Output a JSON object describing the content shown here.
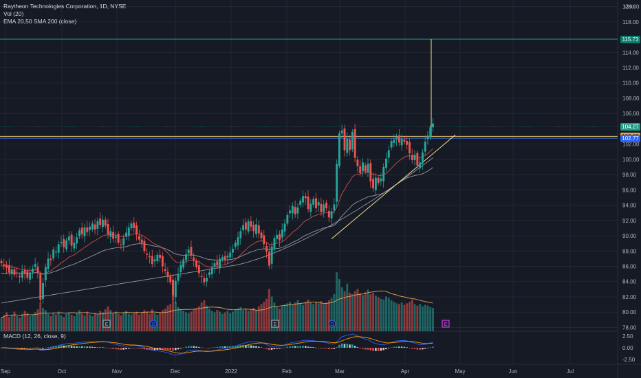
{
  "header": {
    "symbol_line": "Raytheon Technologies Corporation, 1D, NYSE",
    "vol_line": "Vol (20)",
    "ma_line": "EMA 20,50 SMA 200 (close)",
    "currency": "USD"
  },
  "macd_label": "MACD (12, 26, close, 9)",
  "price_tags": [
    {
      "label": "115.73",
      "value": 115.73,
      "bg": "#0b7d6b",
      "fg": "#ffffff"
    },
    {
      "label": "104.27",
      "value": 104.27,
      "bg": "#1e9e88",
      "fg": "#ffffff"
    },
    {
      "label": "103.02",
      "value": 103.02,
      "bg": "#f0a338",
      "fg": "#1a1a1a"
    },
    {
      "label": "102.77",
      "value": 102.77,
      "bg": "#2962ff",
      "fg": "#ffffff"
    }
  ],
  "colors": {
    "up": "#26a69a",
    "down": "#ef5350",
    "ema20": "#ef5350",
    "ema50": "#9598a1",
    "sma200": "#b2b5be",
    "trendline": "#f3e08a",
    "macd": "#2962ff",
    "signal": "#ff9800",
    "horizontal_green": "#1e9e88",
    "horizontal_yellow": "#f0c870",
    "horizontal_blue": "#3b6fe0"
  },
  "chart_data": {
    "type": "candlestick",
    "x_ticks": [
      "Sep",
      "Oct",
      "Nov",
      "Dec",
      "2022",
      "Feb",
      "Mar",
      "Apr",
      "May",
      "Jun",
      "Jul"
    ],
    "y_ticks": [
      78,
      80,
      82,
      84,
      86,
      88,
      90,
      92,
      94,
      96,
      98,
      100,
      102,
      106,
      108,
      110,
      112,
      114,
      118,
      120
    ],
    "ylim": [
      77.5,
      120.5
    ],
    "macd_ticks": [
      "2.50",
      "0.00",
      "-2.50"
    ],
    "macd_ylim": [
      -3.2,
      3.2
    ],
    "closes": [
      86.4,
      86.1,
      85.8,
      85.2,
      85.6,
      84.9,
      85.1,
      84.6,
      85.4,
      85.0,
      84.5,
      85.2,
      85.7,
      86.3,
      85.1,
      81.6,
      83.8,
      85.9,
      87.0,
      86.8,
      88.2,
      87.9,
      88.9,
      89.2,
      88.5,
      89.4,
      89.9,
      88.7,
      89.1,
      89.8,
      90.7,
      90.2,
      91.1,
      90.5,
      91.2,
      91.6,
      90.8,
      91.9,
      91.4,
      92.1,
      91.3,
      90.2,
      90.6,
      89.6,
      89.9,
      89.1,
      88.8,
      89.7,
      90.4,
      91.1,
      91.6,
      91.0,
      90.2,
      89.5,
      89.1,
      88.0,
      87.5,
      87.2,
      86.3,
      86.9,
      87.5,
      87.1,
      86.0,
      85.4,
      84.6,
      83.9,
      82.2,
      84.1,
      85.0,
      86.2,
      86.9,
      87.6,
      88.2,
      87.4,
      86.7,
      85.9,
      85.1,
      84.6,
      83.9,
      84.5,
      85.2,
      85.9,
      86.4,
      86.1,
      87.0,
      87.2,
      86.8,
      87.4,
      87.8,
      88.3,
      89.1,
      89.8,
      90.6,
      91.4,
      90.8,
      91.9,
      91.2,
      90.6,
      91.5,
      90.3,
      89.7,
      88.9,
      87.9,
      86.1,
      88.6,
      89.7,
      90.1,
      89.4,
      90.8,
      91.6,
      92.7,
      93.3,
      93.9,
      92.8,
      93.7,
      94.6,
      95.2,
      94.9,
      93.5,
      94.2,
      94.8,
      93.6,
      94.4,
      93.1,
      94.1,
      93.6,
      92.4,
      93.2,
      94.1,
      99.4,
      103.4,
      103.8,
      101.2,
      102.7,
      101.2,
      103.6,
      100.2,
      99.1,
      98.2,
      99.6,
      98.4,
      99.4,
      97.1,
      96.2,
      97.6,
      96.9,
      97.5,
      99.0,
      100.1,
      101.2,
      102.4,
      102.6,
      102.9,
      102.2,
      102.7,
      102.3,
      101.9,
      100.8,
      99.9,
      100.6,
      99.2,
      99.6,
      100.9,
      102.3,
      103.1,
      104.2,
      104.7
    ],
    "volumes": [
      1.8,
      2.1,
      2.5,
      1.9,
      2.2,
      2.6,
      2.0,
      1.8,
      2.3,
      2.7,
      2.4,
      2.0,
      2.2,
      2.5,
      2.9,
      3.8,
      3.1,
      2.8,
      2.3,
      2.0,
      2.4,
      2.2,
      2.6,
      2.1,
      1.9,
      2.3,
      2.5,
      2.2,
      2.0,
      2.4,
      2.8,
      2.3,
      2.1,
      2.6,
      2.2,
      2.0,
      2.4,
      2.2,
      2.7,
      2.5,
      2.9,
      3.3,
      2.8,
      2.4,
      2.6,
      2.3,
      2.1,
      2.5,
      2.7,
      2.3,
      2.2,
      2.4,
      2.6,
      2.2,
      2.5,
      2.8,
      2.6,
      2.3,
      2.9,
      2.4,
      2.2,
      2.5,
      2.8,
      3.0,
      3.4,
      3.6,
      4.8,
      3.9,
      3.2,
      2.9,
      2.7,
      2.5,
      2.4,
      2.6,
      2.9,
      3.1,
      3.3,
      3.8,
      4.1,
      3.4,
      3.0,
      2.7,
      2.5,
      2.8,
      2.6,
      2.3,
      2.5,
      2.7,
      2.4,
      2.6,
      2.9,
      3.0,
      3.2,
      2.8,
      3.0,
      2.7,
      2.9,
      3.1,
      2.8,
      3.3,
      3.6,
      3.9,
      4.3,
      5.6,
      4.6,
      3.8,
      3.2,
      3.0,
      3.3,
      3.5,
      3.7,
      3.9,
      3.6,
      3.8,
      4.1,
      3.7,
      3.5,
      3.9,
      4.2,
      3.8,
      3.6,
      3.9,
      3.7,
      4.0,
      3.6,
      3.8,
      4.1,
      4.4,
      4.9,
      7.8,
      6.9,
      5.8,
      5.3,
      6.3,
      5.1,
      4.9,
      5.3,
      5.6,
      5.0,
      4.8,
      5.2,
      5.5,
      4.9,
      5.1,
      4.7,
      4.5,
      4.3,
      4.2,
      4.6,
      4.4,
      4.1,
      3.9,
      3.7,
      3.6,
      3.8,
      3.5,
      3.7,
      3.9,
      4.2,
      3.6,
      3.4,
      3.6,
      3.3,
      3.5,
      3.4,
      3.2,
      3.1
    ]
  }
}
